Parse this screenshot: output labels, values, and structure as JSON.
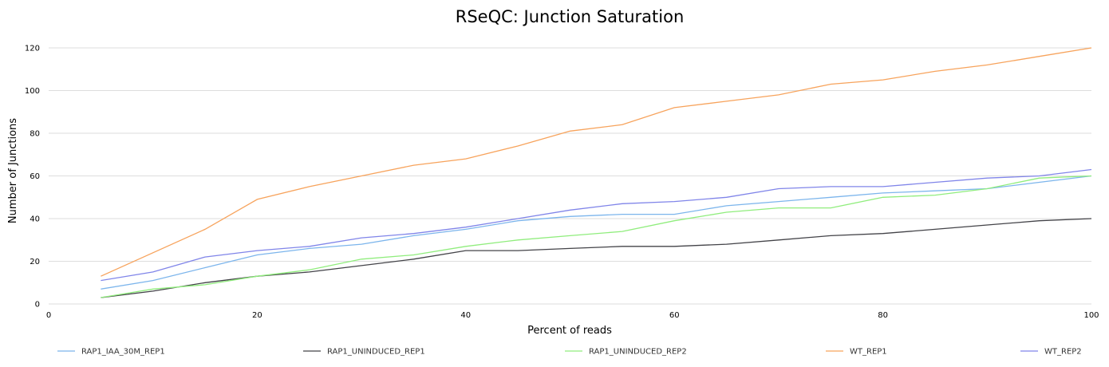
{
  "chart_data": {
    "type": "line",
    "title": "RSeQC: Junction Saturation",
    "xlabel": "Percent of reads",
    "ylabel": "Number of Junctions",
    "xlim": [
      0,
      100
    ],
    "ylim": [
      0,
      120
    ],
    "x_ticks": [
      0,
      20,
      40,
      60,
      80,
      100
    ],
    "y_ticks": [
      0,
      20,
      40,
      60,
      80,
      100,
      120
    ],
    "grid": true,
    "legend_position": "bottom",
    "x": [
      5,
      10,
      15,
      20,
      25,
      30,
      35,
      40,
      45,
      50,
      55,
      60,
      65,
      70,
      75,
      80,
      85,
      90,
      95,
      100
    ],
    "series": [
      {
        "name": "RAP1_IAA_30M_REP1",
        "color": "#7cb5ec",
        "values": [
          7,
          11,
          17,
          23,
          26,
          28,
          32,
          35,
          39,
          41,
          42,
          42,
          46,
          48,
          50,
          52,
          53,
          54,
          57,
          60
        ]
      },
      {
        "name": "RAP1_UNINDUCED_REP1",
        "color": "#434348",
        "values": [
          3,
          6,
          10,
          13,
          15,
          18,
          21,
          25,
          25,
          26,
          27,
          27,
          28,
          30,
          32,
          33,
          35,
          37,
          39,
          40
        ]
      },
      {
        "name": "RAP1_UNINDUCED_REP2",
        "color": "#90ed7d",
        "values": [
          3,
          7,
          9,
          13,
          16,
          21,
          23,
          27,
          30,
          32,
          34,
          39,
          43,
          45,
          45,
          50,
          51,
          54,
          59,
          60
        ]
      },
      {
        "name": "WT_REP1",
        "color": "#f7a35c",
        "values": [
          13,
          24,
          35,
          49,
          55,
          60,
          65,
          68,
          74,
          81,
          84,
          92,
          95,
          98,
          103,
          105,
          109,
          112,
          116,
          120
        ]
      },
      {
        "name": "WT_REP2",
        "color": "#8085e9",
        "values": [
          11,
          15,
          22,
          25,
          27,
          31,
          33,
          36,
          40,
          44,
          47,
          48,
          50,
          54,
          55,
          55,
          57,
          59,
          60,
          63
        ]
      }
    ]
  }
}
